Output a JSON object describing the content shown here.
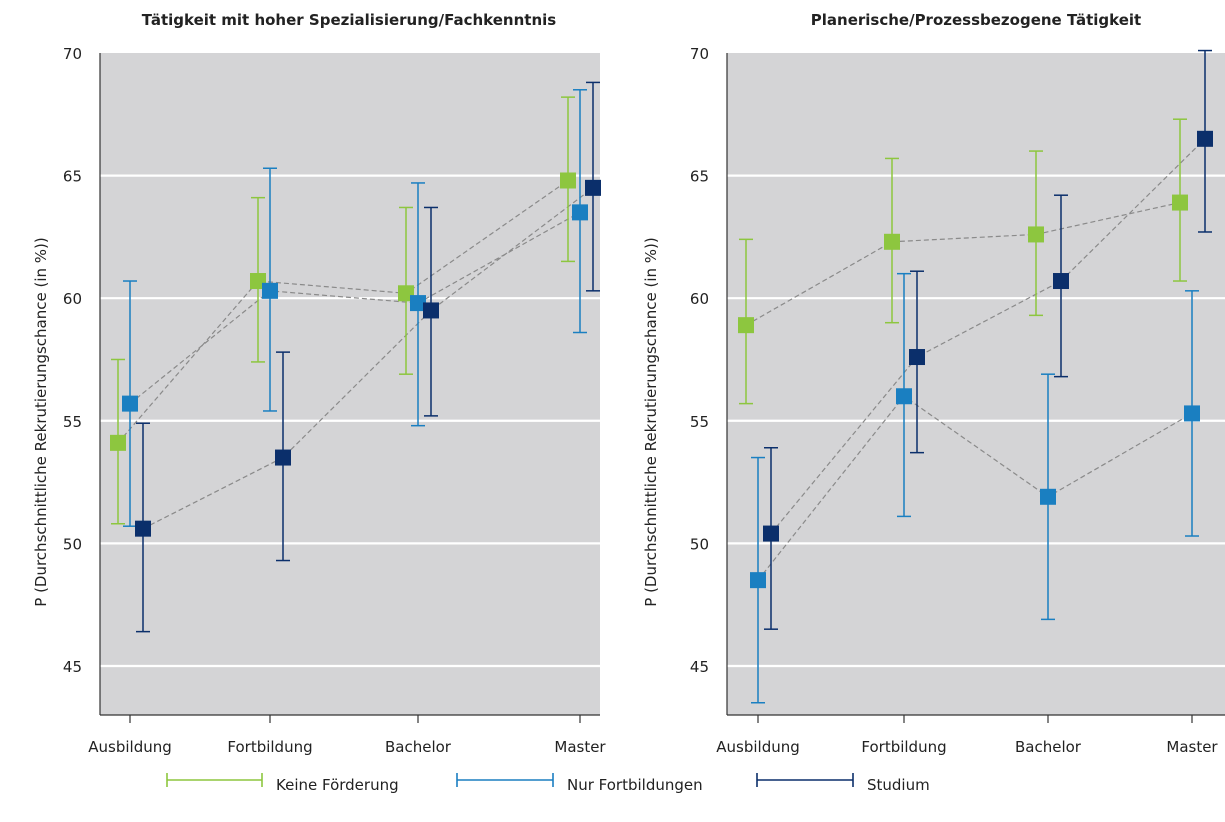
{
  "chart_data": [
    {
      "type": "scatter",
      "title": "Tätigkeit mit hoher Spezialisierung/Fachkenntnis",
      "ylabel": "P (Durchschnittliche Rekrutierungschance (in %))",
      "xlabel": "",
      "categories": [
        "Ausbildung",
        "Fortbildung",
        "Bachelor",
        "Master"
      ],
      "ylim": [
        43,
        70
      ],
      "yticks": [
        45,
        50,
        55,
        60,
        65,
        70
      ],
      "grid": true,
      "series": [
        {
          "name": "Keine Förderung",
          "values": [
            54.1,
            60.7,
            60.2,
            64.8
          ],
          "lower": [
            50.8,
            57.4,
            56.9,
            61.5
          ],
          "upper": [
            57.5,
            64.1,
            63.7,
            68.2
          ]
        },
        {
          "name": "Nur Fortbildungen",
          "values": [
            55.7,
            60.3,
            59.8,
            63.5
          ],
          "lower": [
            50.7,
            55.4,
            54.8,
            58.6
          ],
          "upper": [
            60.7,
            65.3,
            64.7,
            68.5
          ]
        },
        {
          "name": "Studium",
          "values": [
            50.6,
            53.5,
            59.5,
            64.5
          ],
          "lower": [
            46.4,
            49.3,
            55.2,
            60.3
          ],
          "upper": [
            54.9,
            57.8,
            63.7,
            68.8
          ]
        }
      ]
    },
    {
      "type": "scatter",
      "title": "Planerische/Prozessbezogene Tätigkeit",
      "ylabel": "P (Durchschnittliche Rekrutierungschance (in %))",
      "xlabel": "",
      "categories": [
        "Ausbildung",
        "Fortbildung",
        "Bachelor",
        "Master"
      ],
      "ylim": [
        43,
        70
      ],
      "yticks": [
        45,
        50,
        55,
        60,
        65,
        70
      ],
      "grid": true,
      "series": [
        {
          "name": "Keine Förderung",
          "values": [
            58.9,
            62.3,
            62.6,
            63.9
          ],
          "lower": [
            55.7,
            59.0,
            59.3,
            60.7
          ],
          "upper": [
            62.4,
            65.7,
            66.0,
            67.3
          ]
        },
        {
          "name": "Nur Fortbildungen",
          "values": [
            48.5,
            56.0,
            51.9,
            55.3
          ],
          "lower": [
            43.5,
            51.1,
            46.9,
            50.3
          ],
          "upper": [
            53.5,
            61.0,
            56.9,
            60.3
          ]
        },
        {
          "name": "Studium",
          "values": [
            50.4,
            57.6,
            60.7,
            66.5
          ],
          "lower": [
            46.5,
            53.7,
            56.8,
            62.7
          ],
          "upper": [
            53.9,
            61.1,
            64.2,
            70.1
          ]
        }
      ]
    }
  ],
  "legend": {
    "placement": "bottom",
    "items": [
      {
        "label": "Keine Förderung",
        "color": "#8dc63f"
      },
      {
        "label": "Nur Fortbildungen",
        "color": "#1a7fc1"
      },
      {
        "label": "Studium",
        "color": "#0b2f6b"
      }
    ]
  },
  "colors": {
    "plot_background": "#d4d4d6",
    "gridline": "#ffffff",
    "connector": "#8a8a8a",
    "series": [
      "#8dc63f",
      "#1a7fc1",
      "#0b2f6b"
    ]
  }
}
